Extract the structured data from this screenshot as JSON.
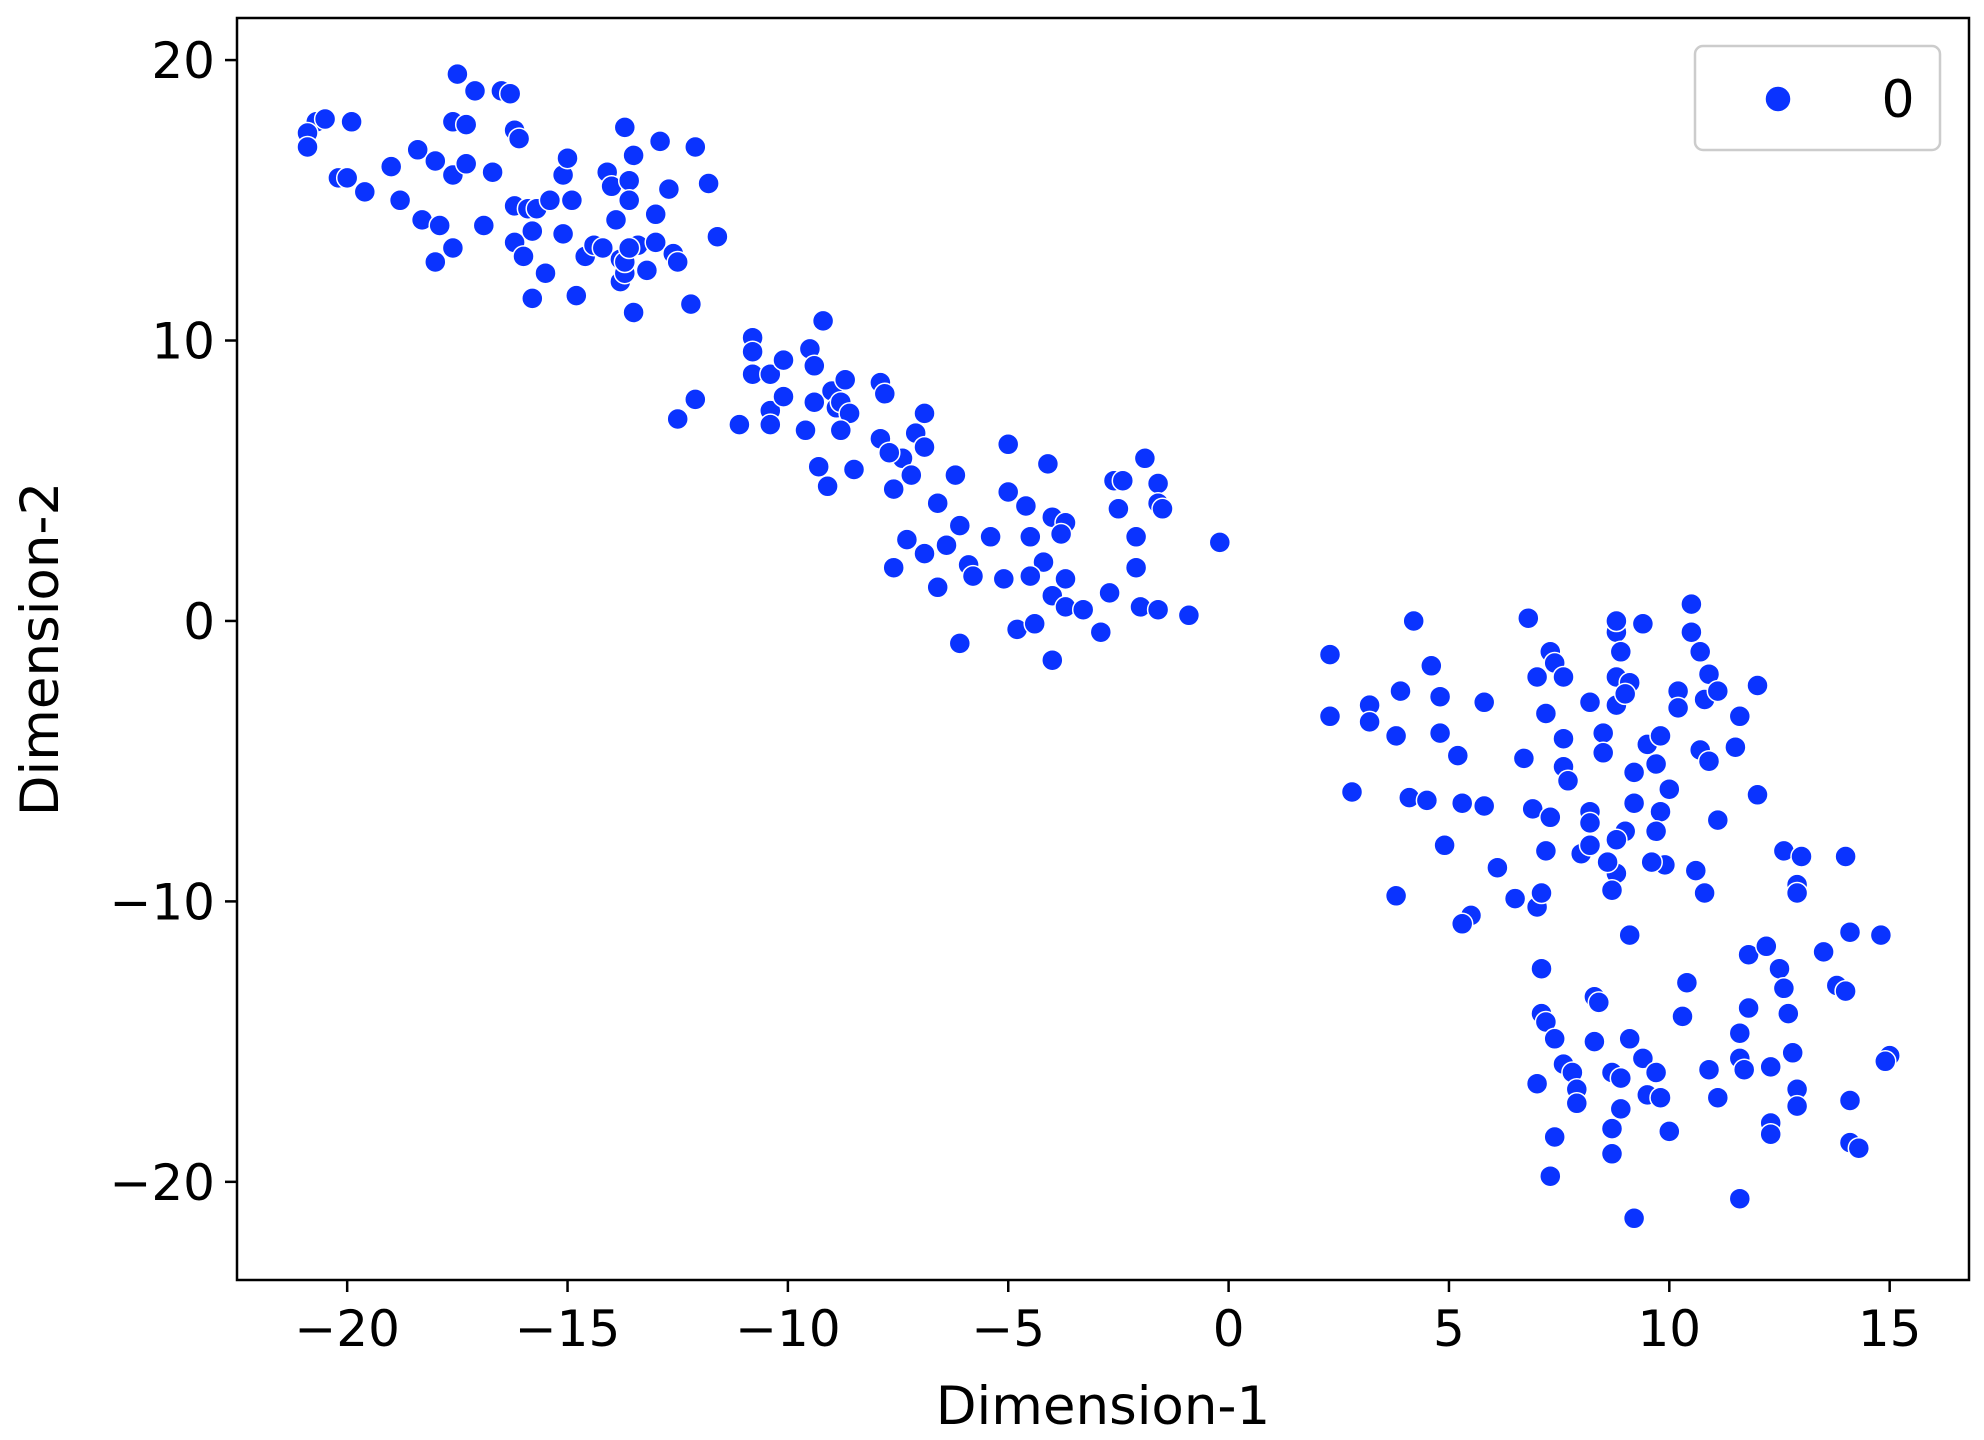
{
  "chart_data": {
    "type": "scatter",
    "title": "",
    "xlabel": "Dimension-1",
    "ylabel": "Dimension-2",
    "xlim": [
      -22.5,
      16.8
    ],
    "ylim": [
      -23.5,
      21.5
    ],
    "xticks": [
      -20,
      -15,
      -10,
      -5,
      0,
      5,
      10,
      15
    ],
    "yticks": [
      -20,
      -10,
      0,
      10,
      20
    ],
    "xtick_labels": [
      "−20",
      "−15",
      "−10",
      "−5",
      "0",
      "5",
      "10",
      "15"
    ],
    "ytick_labels": [
      "−20",
      "−10",
      "0",
      "10",
      "20"
    ],
    "grid": false,
    "legend": {
      "position": "top-right",
      "entries": [
        "0"
      ]
    },
    "series": [
      {
        "name": "0",
        "color": "#0a33ff",
        "points": [
          [
            -20.7,
            17.8
          ],
          [
            -20.5,
            17.9
          ],
          [
            -20.9,
            17.4
          ],
          [
            -20.9,
            16.9
          ],
          [
            -19.9,
            17.8
          ],
          [
            -20.2,
            15.8
          ],
          [
            -20.0,
            15.8
          ],
          [
            -19.6,
            15.3
          ],
          [
            -19.0,
            16.2
          ],
          [
            -18.8,
            15.0
          ],
          [
            -18.4,
            16.8
          ],
          [
            -18.3,
            14.3
          ],
          [
            -18.0,
            16.4
          ],
          [
            -17.9,
            14.1
          ],
          [
            -18.0,
            12.8
          ],
          [
            -17.6,
            13.3
          ],
          [
            -17.6,
            17.8
          ],
          [
            -17.3,
            17.7
          ],
          [
            -17.5,
            19.5
          ],
          [
            -17.1,
            18.9
          ],
          [
            -17.6,
            15.9
          ],
          [
            -17.3,
            16.3
          ],
          [
            -16.5,
            18.9
          ],
          [
            -16.3,
            18.8
          ],
          [
            -16.2,
            17.5
          ],
          [
            -16.1,
            17.2
          ],
          [
            -16.7,
            16.0
          ],
          [
            -16.9,
            14.1
          ],
          [
            -16.2,
            14.8
          ],
          [
            -15.9,
            14.7
          ],
          [
            -15.7,
            14.7
          ],
          [
            -16.2,
            13.5
          ],
          [
            -16.0,
            13.0
          ],
          [
            -15.8,
            13.9
          ],
          [
            -15.8,
            11.5
          ],
          [
            -15.5,
            12.4
          ],
          [
            -15.4,
            15.0
          ],
          [
            -15.1,
            15.9
          ],
          [
            -15.0,
            16.5
          ],
          [
            -14.9,
            15.0
          ],
          [
            -15.1,
            13.8
          ],
          [
            -14.8,
            11.6
          ],
          [
            -14.6,
            13.0
          ],
          [
            -14.4,
            13.4
          ],
          [
            -14.2,
            13.3
          ],
          [
            -14.1,
            16.0
          ],
          [
            -14.0,
            15.5
          ],
          [
            -13.9,
            14.3
          ],
          [
            -13.8,
            12.9
          ],
          [
            -13.8,
            12.1
          ],
          [
            -13.7,
            12.4
          ],
          [
            -13.6,
            15.7
          ],
          [
            -13.7,
            17.6
          ],
          [
            -13.5,
            16.6
          ],
          [
            -13.4,
            13.4
          ],
          [
            -13.5,
            11.0
          ],
          [
            -13.2,
            12.5
          ],
          [
            -13.0,
            13.5
          ],
          [
            -13.0,
            14.5
          ],
          [
            -12.9,
            17.1
          ],
          [
            -12.7,
            15.4
          ],
          [
            -12.6,
            13.1
          ],
          [
            -12.5,
            12.8
          ],
          [
            -12.2,
            11.3
          ],
          [
            -12.1,
            16.9
          ],
          [
            -11.8,
            15.6
          ],
          [
            -11.6,
            13.7
          ],
          [
            -13.6,
            15.0
          ],
          [
            -13.7,
            12.8
          ],
          [
            -13.6,
            13.3
          ],
          [
            -12.5,
            7.2
          ],
          [
            -12.1,
            7.9
          ],
          [
            -11.1,
            7.0
          ],
          [
            -10.8,
            10.1
          ],
          [
            -10.8,
            9.6
          ],
          [
            -10.8,
            8.8
          ],
          [
            -10.4,
            8.8
          ],
          [
            -10.4,
            7.5
          ],
          [
            -10.4,
            7.0
          ],
          [
            -10.1,
            9.3
          ],
          [
            -10.1,
            8.0
          ],
          [
            -9.5,
            9.7
          ],
          [
            -9.4,
            9.1
          ],
          [
            -9.4,
            7.8
          ],
          [
            -9.2,
            10.7
          ],
          [
            -9.6,
            6.8
          ],
          [
            -9.3,
            5.5
          ],
          [
            -9.0,
            8.2
          ],
          [
            -8.9,
            7.6
          ],
          [
            -8.8,
            7.8
          ],
          [
            -8.7,
            8.6
          ],
          [
            -8.6,
            7.4
          ],
          [
            -8.8,
            6.8
          ],
          [
            -9.1,
            4.8
          ],
          [
            -8.5,
            5.4
          ],
          [
            -7.9,
            8.5
          ],
          [
            -7.8,
            8.1
          ],
          [
            -7.9,
            6.5
          ],
          [
            -7.6,
            4.7
          ],
          [
            -7.4,
            5.8
          ],
          [
            -7.2,
            5.2
          ],
          [
            -7.1,
            6.7
          ],
          [
            -6.9,
            7.4
          ],
          [
            -6.9,
            6.2
          ],
          [
            -7.3,
            2.9
          ],
          [
            -6.9,
            2.4
          ],
          [
            -6.6,
            4.2
          ],
          [
            -6.4,
            2.7
          ],
          [
            -6.2,
            5.2
          ],
          [
            -6.1,
            3.4
          ],
          [
            -6.6,
            1.2
          ],
          [
            -5.9,
            2.0
          ],
          [
            -5.8,
            1.6
          ],
          [
            -6.1,
            -0.8
          ],
          [
            -5.0,
            6.3
          ],
          [
            -5.0,
            4.6
          ],
          [
            -4.6,
            4.1
          ],
          [
            -4.5,
            3.0
          ],
          [
            -4.1,
            5.6
          ],
          [
            -4.0,
            3.7
          ],
          [
            -3.7,
            3.5
          ],
          [
            -3.8,
            3.1
          ],
          [
            -4.2,
            2.1
          ],
          [
            -4.0,
            0.9
          ],
          [
            -3.7,
            1.5
          ],
          [
            -3.7,
            0.5
          ],
          [
            -5.4,
            3.0
          ],
          [
            -5.1,
            1.5
          ],
          [
            -4.5,
            1.6
          ],
          [
            -4.8,
            -0.3
          ],
          [
            -4.4,
            -0.1
          ],
          [
            -4.0,
            -1.4
          ],
          [
            -3.3,
            0.4
          ],
          [
            -2.9,
            -0.4
          ],
          [
            -2.7,
            1.0
          ],
          [
            -2.6,
            5.0
          ],
          [
            -2.4,
            5.0
          ],
          [
            -2.5,
            4.0
          ],
          [
            -2.1,
            3.0
          ],
          [
            -2.1,
            1.9
          ],
          [
            -2.0,
            0.5
          ],
          [
            -1.9,
            5.8
          ],
          [
            -1.6,
            4.9
          ],
          [
            -1.6,
            4.2
          ],
          [
            -1.5,
            4.0
          ],
          [
            -1.6,
            0.4
          ],
          [
            -0.9,
            0.2
          ],
          [
            -0.2,
            2.8
          ],
          [
            -7.6,
            1.9
          ],
          [
            -7.7,
            6.0
          ],
          [
            4.2,
            0.0
          ],
          [
            2.3,
            -1.2
          ],
          [
            2.3,
            -3.4
          ],
          [
            2.8,
            -6.1
          ],
          [
            3.2,
            -3.0
          ],
          [
            3.2,
            -3.6
          ],
          [
            3.8,
            -4.1
          ],
          [
            3.9,
            -2.5
          ],
          [
            4.1,
            -6.3
          ],
          [
            3.8,
            -9.8
          ],
          [
            4.6,
            -1.6
          ],
          [
            4.8,
            -2.7
          ],
          [
            4.8,
            -4.0
          ],
          [
            4.5,
            -6.4
          ],
          [
            5.2,
            -4.8
          ],
          [
            5.3,
            -6.5
          ],
          [
            4.9,
            -8.0
          ],
          [
            5.5,
            -10.5
          ],
          [
            5.3,
            -10.8
          ],
          [
            5.8,
            -2.9
          ],
          [
            5.8,
            -6.6
          ],
          [
            6.1,
            -8.8
          ],
          [
            6.7,
            -4.9
          ],
          [
            6.5,
            -9.9
          ],
          [
            6.8,
            0.1
          ],
          [
            7.0,
            -2.0
          ],
          [
            6.9,
            -6.7
          ],
          [
            7.0,
            -10.2
          ],
          [
            7.1,
            -9.7
          ],
          [
            7.2,
            -8.2
          ],
          [
            7.3,
            -1.1
          ],
          [
            7.4,
            -1.5
          ],
          [
            7.2,
            -3.3
          ],
          [
            7.6,
            -2.0
          ],
          [
            7.6,
            -4.2
          ],
          [
            7.6,
            -5.2
          ],
          [
            7.7,
            -5.7
          ],
          [
            7.3,
            -7.0
          ],
          [
            8.2,
            -2.9
          ],
          [
            8.2,
            -6.8
          ],
          [
            8.2,
            -7.2
          ],
          [
            8.0,
            -8.3
          ],
          [
            8.2,
            -8.0
          ],
          [
            8.5,
            -4.0
          ],
          [
            8.5,
            -4.7
          ],
          [
            8.8,
            -0.4
          ],
          [
            8.8,
            0.0
          ],
          [
            8.8,
            -2.0
          ],
          [
            8.9,
            -1.1
          ],
          [
            8.8,
            -3.0
          ],
          [
            9.1,
            -2.2
          ],
          [
            9.0,
            -2.6
          ],
          [
            9.2,
            -5.4
          ],
          [
            9.0,
            -7.5
          ],
          [
            9.2,
            -6.5
          ],
          [
            8.8,
            -7.8
          ],
          [
            8.8,
            -9.0
          ],
          [
            8.7,
            -9.6
          ],
          [
            8.6,
            -8.6
          ],
          [
            9.4,
            -0.1
          ],
          [
            9.5,
            -4.4
          ],
          [
            9.7,
            -5.1
          ],
          [
            9.8,
            -4.1
          ],
          [
            9.8,
            -6.8
          ],
          [
            9.7,
            -7.5
          ],
          [
            10.0,
            -6.0
          ],
          [
            9.9,
            -8.7
          ],
          [
            10.2,
            -2.5
          ],
          [
            10.2,
            -3.1
          ],
          [
            10.5,
            0.6
          ],
          [
            10.5,
            -0.4
          ],
          [
            9.6,
            -8.6
          ],
          [
            9.1,
            -11.2
          ],
          [
            10.7,
            -1.1
          ],
          [
            10.8,
            -2.8
          ],
          [
            10.7,
            -4.6
          ],
          [
            10.9,
            -1.9
          ],
          [
            11.1,
            -2.5
          ],
          [
            10.9,
            -5.0
          ],
          [
            11.1,
            -7.1
          ],
          [
            10.6,
            -8.9
          ],
          [
            10.8,
            -9.7
          ],
          [
            11.5,
            -4.5
          ],
          [
            11.6,
            -3.4
          ],
          [
            12.0,
            -2.3
          ],
          [
            12.0,
            -6.2
          ],
          [
            7.1,
            -12.4
          ],
          [
            7.1,
            -14.0
          ],
          [
            7.2,
            -14.3
          ],
          [
            7.4,
            -14.9
          ],
          [
            7.6,
            -15.8
          ],
          [
            7.8,
            -16.1
          ],
          [
            7.9,
            -16.7
          ],
          [
            7.9,
            -17.2
          ],
          [
            7.4,
            -18.4
          ],
          [
            7.3,
            -19.8
          ],
          [
            7.0,
            -16.5
          ],
          [
            8.3,
            -13.4
          ],
          [
            8.4,
            -13.6
          ],
          [
            8.3,
            -15.0
          ],
          [
            8.7,
            -16.1
          ],
          [
            8.9,
            -16.3
          ],
          [
            8.9,
            -17.4
          ],
          [
            8.7,
            -18.1
          ],
          [
            8.7,
            -19.0
          ],
          [
            9.1,
            -14.9
          ],
          [
            9.4,
            -15.6
          ],
          [
            9.5,
            -16.9
          ],
          [
            9.7,
            -16.1
          ],
          [
            9.8,
            -17.0
          ],
          [
            9.2,
            -21.3
          ],
          [
            10.0,
            -18.2
          ],
          [
            10.3,
            -14.1
          ],
          [
            10.4,
            -12.9
          ],
          [
            10.9,
            -16.0
          ],
          [
            11.1,
            -17.0
          ],
          [
            11.6,
            -15.6
          ],
          [
            11.7,
            -16.0
          ],
          [
            11.6,
            -14.7
          ],
          [
            11.8,
            -13.8
          ],
          [
            11.8,
            -11.9
          ],
          [
            12.2,
            -11.6
          ],
          [
            12.5,
            -12.4
          ],
          [
            12.6,
            -13.1
          ],
          [
            12.7,
            -14.0
          ],
          [
            12.8,
            -15.4
          ],
          [
            12.9,
            -16.7
          ],
          [
            12.9,
            -17.3
          ],
          [
            12.3,
            -17.9
          ],
          [
            12.3,
            -18.3
          ],
          [
            12.3,
            -15.9
          ],
          [
            11.6,
            -20.6
          ],
          [
            12.6,
            -8.2
          ],
          [
            13.0,
            -8.4
          ],
          [
            12.9,
            -9.4
          ],
          [
            12.9,
            -9.7
          ],
          [
            13.5,
            -11.8
          ],
          [
            13.8,
            -13.0
          ],
          [
            14.0,
            -8.4
          ],
          [
            14.1,
            -11.1
          ],
          [
            14.0,
            -13.2
          ],
          [
            14.1,
            -17.1
          ],
          [
            14.1,
            -18.6
          ],
          [
            14.3,
            -18.8
          ],
          [
            14.8,
            -11.2
          ],
          [
            15.0,
            -15.5
          ],
          [
            14.9,
            -15.7
          ]
        ]
      }
    ]
  }
}
